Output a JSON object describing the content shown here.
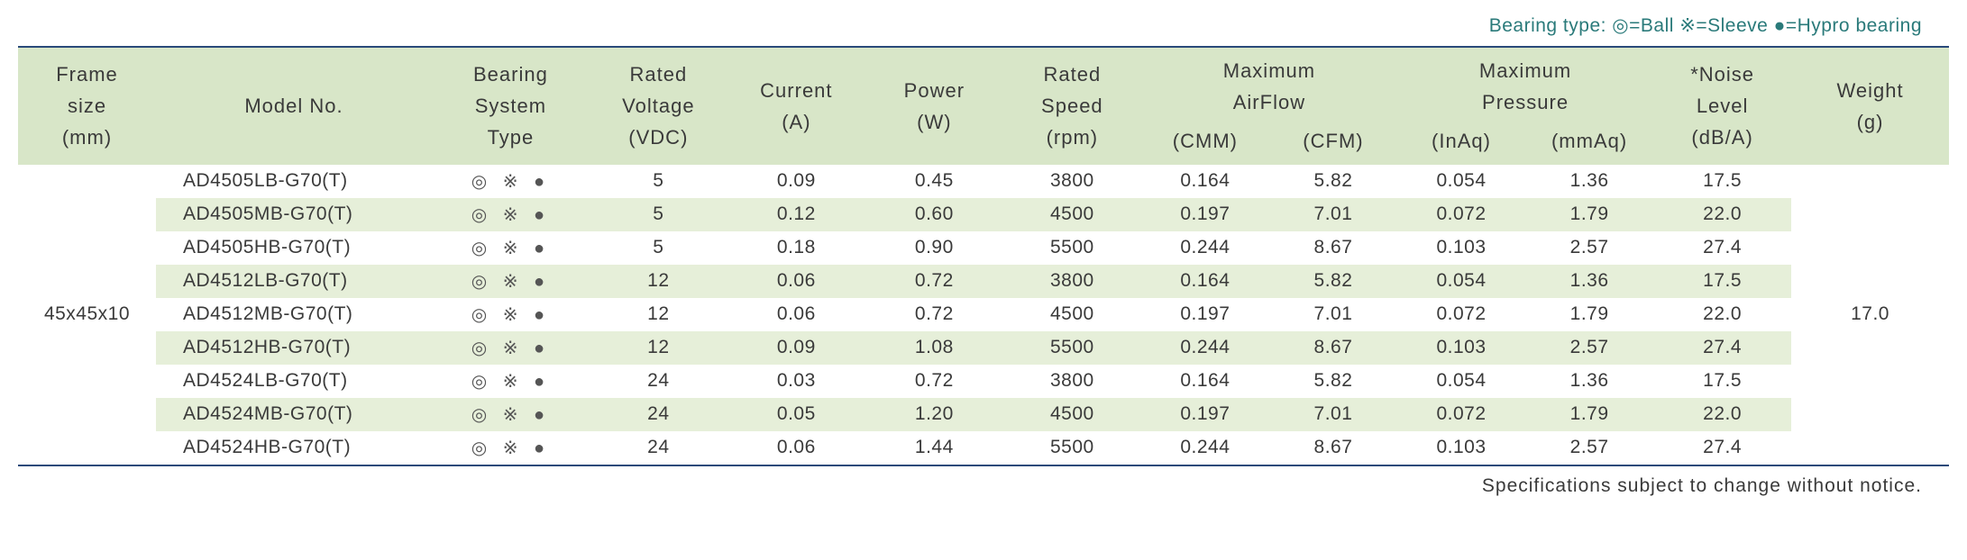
{
  "legend": "Bearing type:  ◎=Ball ※=Sleeve ●=Hypro bearing",
  "footer": "Specifications subject to change without notice.",
  "columns": {
    "frame": {
      "l1": "Frame",
      "l2": "size",
      "l3": "(mm)"
    },
    "model": {
      "l1": "",
      "l2": "Model No.",
      "l3": ""
    },
    "bearing": {
      "l1": "Bearing",
      "l2": "System",
      "l3": "Type"
    },
    "voltage": {
      "l1": "Rated",
      "l2": "Voltage",
      "l3": "(VDC)"
    },
    "current": {
      "l1": "",
      "l2": "Current",
      "l3": "(A)"
    },
    "power": {
      "l1": "",
      "l2": "Power",
      "l3": "(W)"
    },
    "speed": {
      "l1": "Rated",
      "l2": "Speed",
      "l3": "(rpm)"
    },
    "airflow": {
      "l1": "Maximum",
      "l2": "AirFlow"
    },
    "cmm": "(CMM)",
    "cfm": "(CFM)",
    "pressure": {
      "l1": "Maximum",
      "l2": "Pressure"
    },
    "inaq": "(InAq)",
    "mmaq": "(mmAq)",
    "noise": {
      "l1": "*Noise",
      "l2": "Level",
      "l3": "(dB/A)"
    },
    "weight": {
      "l1": "",
      "l2": "Weight",
      "l3": "(g)"
    }
  },
  "frame_size": "45x45x10",
  "weight": "17.0",
  "bearing_icons": "◎ ※   ●",
  "rows": [
    {
      "model": "AD4505LB-G70(T)",
      "voltage": "5",
      "current": "0.09",
      "power": "0.45",
      "speed": "3800",
      "cmm": "0.164",
      "cfm": "5.82",
      "inaq": "0.054",
      "mmaq": "1.36",
      "noise": "17.5"
    },
    {
      "model": "AD4505MB-G70(T)",
      "voltage": "5",
      "current": "0.12",
      "power": "0.60",
      "speed": "4500",
      "cmm": "0.197",
      "cfm": "7.01",
      "inaq": "0.072",
      "mmaq": "1.79",
      "noise": "22.0"
    },
    {
      "model": "AD4505HB-G70(T)",
      "voltage": "5",
      "current": "0.18",
      "power": "0.90",
      "speed": "5500",
      "cmm": "0.244",
      "cfm": "8.67",
      "inaq": "0.103",
      "mmaq": "2.57",
      "noise": "27.4"
    },
    {
      "model": "AD4512LB-G70(T)",
      "voltage": "12",
      "current": "0.06",
      "power": "0.72",
      "speed": "3800",
      "cmm": "0.164",
      "cfm": "5.82",
      "inaq": "0.054",
      "mmaq": "1.36",
      "noise": "17.5"
    },
    {
      "model": "AD4512MB-G70(T)",
      "voltage": "12",
      "current": "0.06",
      "power": "0.72",
      "speed": "4500",
      "cmm": "0.197",
      "cfm": "7.01",
      "inaq": "0.072",
      "mmaq": "1.79",
      "noise": "22.0"
    },
    {
      "model": "AD4512HB-G70(T)",
      "voltage": "12",
      "current": "0.09",
      "power": "1.08",
      "speed": "5500",
      "cmm": "0.244",
      "cfm": "8.67",
      "inaq": "0.103",
      "mmaq": "2.57",
      "noise": "27.4"
    },
    {
      "model": "AD4524LB-G70(T)",
      "voltage": "24",
      "current": "0.03",
      "power": "0.72",
      "speed": "3800",
      "cmm": "0.164",
      "cfm": "5.82",
      "inaq": "0.054",
      "mmaq": "1.36",
      "noise": "17.5"
    },
    {
      "model": "AD4524MB-G70(T)",
      "voltage": "24",
      "current": "0.05",
      "power": "1.20",
      "speed": "4500",
      "cmm": "0.197",
      "cfm": "7.01",
      "inaq": "0.072",
      "mmaq": "1.79",
      "noise": "22.0"
    },
    {
      "model": "AD4524HB-G70(T)",
      "voltage": "24",
      "current": "0.06",
      "power": "1.44",
      "speed": "5500",
      "cmm": "0.244",
      "cfm": "8.67",
      "inaq": "0.103",
      "mmaq": "2.57",
      "noise": "27.4"
    }
  ],
  "colors": {
    "header_bg": "#d8e6c8",
    "row_alt_bg": "#e6efd9",
    "border": "#2a4a7a",
    "legend_text": "#2a7a7a",
    "body_text": "#3a3a3a"
  }
}
